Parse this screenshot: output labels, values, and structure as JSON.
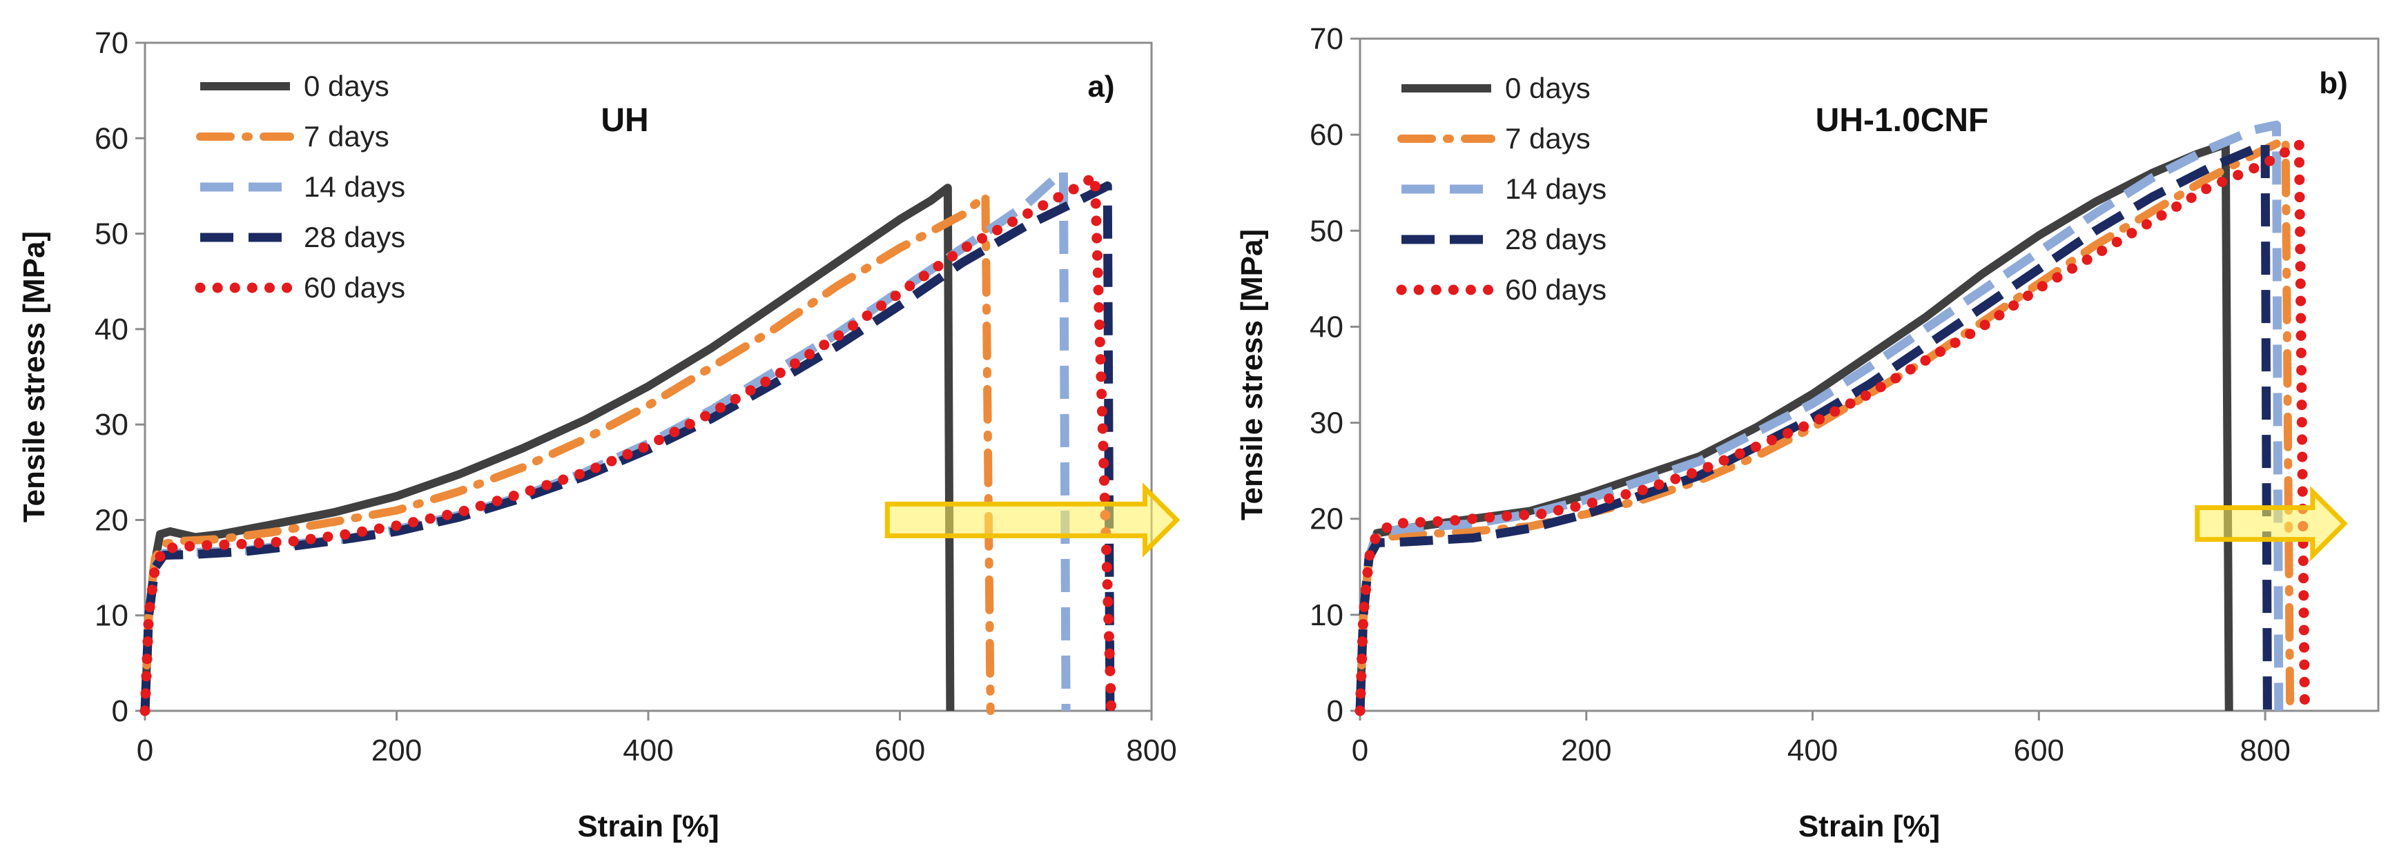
{
  "chart_data": [
    {
      "type": "line",
      "panel_tag": "a)",
      "title": "UH",
      "xlabel": "Strain [%]",
      "ylabel": "Tensile stress [MPa]",
      "xlim": [
        0,
        800
      ],
      "ylim": [
        0,
        70
      ],
      "xticks": [
        "0",
        "200",
        "400",
        "600",
        "800"
      ],
      "yticks": [
        "0",
        "10",
        "20",
        "30",
        "40",
        "50",
        "60",
        "70"
      ],
      "legend_position": "top-left",
      "arrow": {
        "x_start": 590,
        "x_end": 820,
        "y": 20,
        "color": "#f2c200"
      },
      "series": [
        {
          "name": "0 days",
          "color": "#404040",
          "dash": "solid",
          "points": [
            [
              0,
              0
            ],
            [
              3,
              10
            ],
            [
              7,
              15
            ],
            [
              12,
              18.5
            ],
            [
              20,
              18.8
            ],
            [
              40,
              18.2
            ],
            [
              60,
              18.5
            ],
            [
              100,
              19.5
            ],
            [
              150,
              20.8
            ],
            [
              200,
              22.5
            ],
            [
              250,
              24.8
            ],
            [
              300,
              27.5
            ],
            [
              350,
              30.5
            ],
            [
              400,
              34
            ],
            [
              450,
              38
            ],
            [
              500,
              42.5
            ],
            [
              550,
              47
            ],
            [
              600,
              51.5
            ],
            [
              625,
              53.5
            ],
            [
              638,
              54.8
            ],
            [
              640,
              0
            ]
          ]
        },
        {
          "name": "7 days",
          "color": "#ed8a3a",
          "dash": "dashdot",
          "points": [
            [
              0,
              0
            ],
            [
              3,
              10
            ],
            [
              8,
              16
            ],
            [
              15,
              17.5
            ],
            [
              30,
              17.8
            ],
            [
              60,
              18
            ],
            [
              100,
              18.7
            ],
            [
              150,
              19.8
            ],
            [
              200,
              21
            ],
            [
              250,
              23
            ],
            [
              300,
              25.5
            ],
            [
              350,
              28.5
            ],
            [
              400,
              32
            ],
            [
              450,
              36
            ],
            [
              500,
              40
            ],
            [
              550,
              44.5
            ],
            [
              600,
              48.5
            ],
            [
              650,
              52
            ],
            [
              668,
              54
            ],
            [
              672,
              0
            ]
          ]
        },
        {
          "name": "14 days",
          "color": "#8eaad9",
          "dash": "dash",
          "points": [
            [
              0,
              0
            ],
            [
              3,
              10
            ],
            [
              8,
              15
            ],
            [
              15,
              16.5
            ],
            [
              40,
              16.6
            ],
            [
              80,
              16.8
            ],
            [
              120,
              17.5
            ],
            [
              160,
              18
            ],
            [
              200,
              19
            ],
            [
              250,
              20.5
            ],
            [
              300,
              22.5
            ],
            [
              350,
              25
            ],
            [
              400,
              28
            ],
            [
              450,
              31.5
            ],
            [
              500,
              35.5
            ],
            [
              550,
              39.5
            ],
            [
              600,
              44
            ],
            [
              650,
              48.5
            ],
            [
              700,
              53
            ],
            [
              725,
              56
            ],
            [
              730,
              56.5
            ],
            [
              732,
              0
            ]
          ]
        },
        {
          "name": "28 days",
          "color": "#1c2a61",
          "dash": "dash",
          "points": [
            [
              0,
              0
            ],
            [
              3,
              10
            ],
            [
              8,
              15
            ],
            [
              15,
              16.3
            ],
            [
              40,
              16.4
            ],
            [
              80,
              16.7
            ],
            [
              120,
              17.3
            ],
            [
              160,
              18
            ],
            [
              200,
              18.8
            ],
            [
              250,
              20.3
            ],
            [
              300,
              22.3
            ],
            [
              350,
              24.6
            ],
            [
              400,
              27.4
            ],
            [
              450,
              30.6
            ],
            [
              500,
              34.3
            ],
            [
              550,
              38.2
            ],
            [
              600,
              42.5
            ],
            [
              650,
              47
            ],
            [
              700,
              50.8
            ],
            [
              750,
              54
            ],
            [
              765,
              55
            ],
            [
              767,
              0
            ]
          ]
        },
        {
          "name": "60 days",
          "color": "#e41a1c",
          "dash": "dot",
          "points": [
            [
              0,
              0
            ],
            [
              3,
              10
            ],
            [
              8,
              15
            ],
            [
              15,
              17
            ],
            [
              40,
              17.3
            ],
            [
              80,
              17.5
            ],
            [
              120,
              17.8
            ],
            [
              160,
              18.5
            ],
            [
              200,
              19.4
            ],
            [
              250,
              20.8
            ],
            [
              300,
              22.8
            ],
            [
              350,
              25
            ],
            [
              400,
              27.8
            ],
            [
              450,
              31.2
            ],
            [
              500,
              35
            ],
            [
              550,
              39.2
            ],
            [
              600,
              43.8
            ],
            [
              650,
              48.4
            ],
            [
              700,
              52
            ],
            [
              740,
              54.8
            ],
            [
              755,
              56
            ],
            [
              768,
              0
            ]
          ]
        }
      ]
    },
    {
      "type": "line",
      "panel_tag": "b)",
      "title": "UH-1.0CNF",
      "xlabel": "Strain [%]",
      "ylabel": "Tensile stress [MPa]",
      "xlim": [
        0,
        900
      ],
      "ylim": [
        0,
        70
      ],
      "xticks": [
        "0",
        "200",
        "400",
        "600",
        "800"
      ],
      "yticks": [
        "0",
        "10",
        "20",
        "30",
        "40",
        "50",
        "60",
        "70"
      ],
      "legend_position": "top-left",
      "arrow": {
        "x_start": 740,
        "x_end": 870,
        "y": 19.5,
        "color": "#f2c200"
      },
      "series": [
        {
          "name": "0 days",
          "color": "#404040",
          "dash": "solid",
          "points": [
            [
              0,
              0
            ],
            [
              3,
              10
            ],
            [
              8,
              16
            ],
            [
              15,
              18.5
            ],
            [
              40,
              19
            ],
            [
              100,
              20
            ],
            [
              150,
              20.8
            ],
            [
              200,
              22.5
            ],
            [
              250,
              24.5
            ],
            [
              300,
              26.5
            ],
            [
              350,
              29.5
            ],
            [
              400,
              33
            ],
            [
              450,
              37
            ],
            [
              500,
              41
            ],
            [
              550,
              45.5
            ],
            [
              600,
              49.5
            ],
            [
              650,
              53
            ],
            [
              700,
              56
            ],
            [
              740,
              58
            ],
            [
              765,
              59
            ],
            [
              768,
              0
            ]
          ]
        },
        {
          "name": "7 days",
          "color": "#ed8a3a",
          "dash": "dashdot",
          "points": [
            [
              0,
              0
            ],
            [
              3,
              10
            ],
            [
              8,
              16
            ],
            [
              15,
              18
            ],
            [
              40,
              18.3
            ],
            [
              100,
              18.7
            ],
            [
              150,
              19.2
            ],
            [
              200,
              20.5
            ],
            [
              250,
              22
            ],
            [
              300,
              24
            ],
            [
              350,
              26.5
            ],
            [
              400,
              29.5
            ],
            [
              450,
              33
            ],
            [
              500,
              36.5
            ],
            [
              550,
              40.5
            ],
            [
              600,
              44.5
            ],
            [
              650,
              48.5
            ],
            [
              700,
              52
            ],
            [
              750,
              55.5
            ],
            [
              800,
              58.5
            ],
            [
              818,
              59.5
            ],
            [
              822,
              0
            ]
          ]
        },
        {
          "name": "14 days",
          "color": "#8eaad9",
          "dash": "dash",
          "points": [
            [
              0,
              0
            ],
            [
              3,
              10
            ],
            [
              8,
              16
            ],
            [
              15,
              18.5
            ],
            [
              40,
              19
            ],
            [
              100,
              19.5
            ],
            [
              150,
              20.5
            ],
            [
              200,
              22
            ],
            [
              250,
              24
            ],
            [
              300,
              26
            ],
            [
              350,
              29
            ],
            [
              400,
              32
            ],
            [
              450,
              35.8
            ],
            [
              500,
              39.8
            ],
            [
              550,
              43.8
            ],
            [
              600,
              47.8
            ],
            [
              650,
              51.8
            ],
            [
              700,
              55.5
            ],
            [
              750,
              58.5
            ],
            [
              790,
              60.5
            ],
            [
              810,
              61
            ],
            [
              812,
              0
            ]
          ]
        },
        {
          "name": "28 days",
          "color": "#1c2a61",
          "dash": "dash",
          "points": [
            [
              0,
              0
            ],
            [
              3,
              10
            ],
            [
              8,
              16
            ],
            [
              15,
              17.5
            ],
            [
              40,
              17.6
            ],
            [
              100,
              18
            ],
            [
              150,
              19
            ],
            [
              200,
              20.5
            ],
            [
              250,
              22.5
            ],
            [
              300,
              24.5
            ],
            [
              350,
              27.5
            ],
            [
              400,
              30.5
            ],
            [
              450,
              34
            ],
            [
              500,
              38
            ],
            [
              550,
              42
            ],
            [
              600,
              46
            ],
            [
              650,
              50
            ],
            [
              700,
              53.5
            ],
            [
              750,
              56.5
            ],
            [
              790,
              58.5
            ],
            [
              800,
              59
            ],
            [
              802,
              0
            ]
          ]
        },
        {
          "name": "60 days",
          "color": "#e41a1c",
          "dash": "dot",
          "points": [
            [
              0,
              0
            ],
            [
              3,
              10
            ],
            [
              8,
              16
            ],
            [
              15,
              18.5
            ],
            [
              30,
              19.5
            ],
            [
              80,
              19.8
            ],
            [
              120,
              20.2
            ],
            [
              160,
              20.5
            ],
            [
              200,
              21.5
            ],
            [
              250,
              23
            ],
            [
              300,
              25
            ],
            [
              350,
              27.5
            ],
            [
              400,
              30
            ],
            [
              450,
              33
            ],
            [
              500,
              36.5
            ],
            [
              550,
              40
            ],
            [
              600,
              44
            ],
            [
              650,
              47.5
            ],
            [
              700,
              51
            ],
            [
              750,
              54.5
            ],
            [
              800,
              57
            ],
            [
              830,
              59
            ],
            [
              835,
              0
            ]
          ]
        }
      ]
    }
  ]
}
